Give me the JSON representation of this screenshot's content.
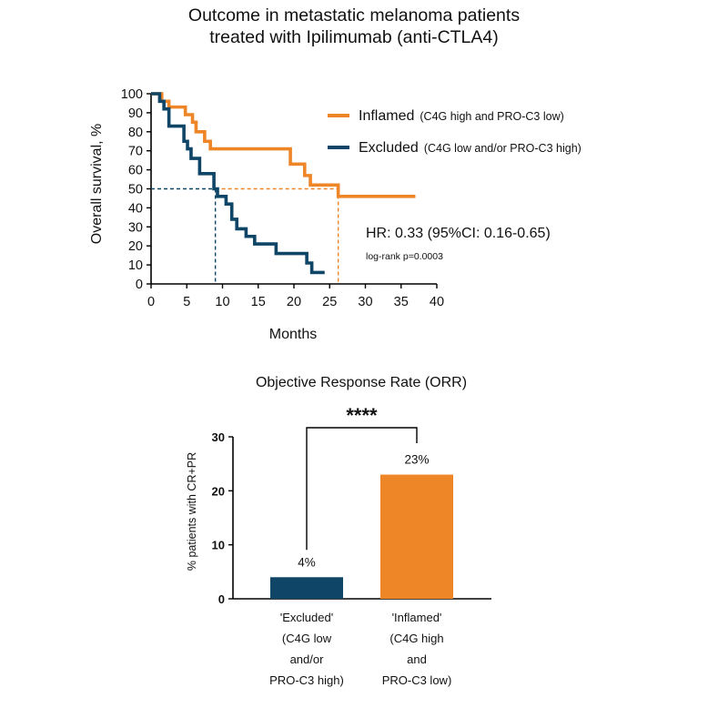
{
  "header": {
    "title_line1": "Outcome in metastatic melanoma patients",
    "title_line2": "treated with Ipilimumab (anti-CTLA4)"
  },
  "colors": {
    "inflamed": "#ee8527",
    "excluded": "#0f4566",
    "axis": "#000000"
  },
  "chart_data": [
    {
      "type": "line",
      "subtype": "kaplan-meier",
      "xlabel": "Months",
      "ylabel": "Overall survival, %",
      "xlim": [
        0,
        40
      ],
      "ylim": [
        0,
        100
      ],
      "xticks": [
        0,
        5,
        10,
        15,
        20,
        25,
        30,
        35,
        40
      ],
      "yticks": [
        0,
        10,
        20,
        30,
        40,
        50,
        60,
        70,
        80,
        90,
        100
      ],
      "legend_position": "top-right",
      "series": [
        {
          "key": "inflamed",
          "name": "Inflamed",
          "name_detail": "(C4G high and PRO-C3 low)",
          "color": "#ee8527",
          "steps": [
            [
              0,
              100
            ],
            [
              1.5,
              96
            ],
            [
              2.5,
              93
            ],
            [
              4.8,
              89
            ],
            [
              5.8,
              85
            ],
            [
              6.3,
              80
            ],
            [
              7.5,
              75
            ],
            [
              8.3,
              71
            ],
            [
              19.5,
              63
            ],
            [
              21.5,
              57
            ],
            [
              22.3,
              52
            ],
            [
              26.2,
              46
            ],
            [
              37,
              46
            ]
          ]
        },
        {
          "key": "excluded",
          "name": "Excluded",
          "name_detail": "(C4G low and/or PRO-C3 high)",
          "color": "#0f4566",
          "steps": [
            [
              0,
              100
            ],
            [
              1.2,
              96
            ],
            [
              1.8,
              92
            ],
            [
              2.5,
              83
            ],
            [
              4.6,
              75
            ],
            [
              5.1,
              71
            ],
            [
              5.6,
              66
            ],
            [
              6.8,
              58
            ],
            [
              8.8,
              50
            ],
            [
              9.3,
              46
            ],
            [
              10.5,
              42
            ],
            [
              11.3,
              34
            ],
            [
              12,
              29
            ],
            [
              13.3,
              25
            ],
            [
              14.5,
              21
            ],
            [
              17.5,
              16
            ],
            [
              21.8,
              11
            ],
            [
              22.5,
              6
            ],
            [
              24.3,
              6
            ]
          ]
        }
      ],
      "median_marks": {
        "y": 50,
        "x_excluded": 9,
        "x_inflamed": 26.2
      },
      "annotations": {
        "hr": "HR: 0.33 (95%CI: 0.16-0.65)",
        "pvalue": "log-rank p=0.0003"
      }
    },
    {
      "type": "bar",
      "title": "Objective Response Rate (ORR)",
      "ylabel": "% patients with CR+PR",
      "ylim": [
        0,
        30
      ],
      "yticks": [
        0,
        10,
        20,
        30
      ],
      "categories": [
        [
          "'Excluded'",
          "(C4G low",
          "and/or",
          "PRO-C3 high)"
        ],
        [
          "'Inflamed'",
          "(C4G high",
          "and",
          "PRO-C3 low)"
        ]
      ],
      "values": [
        4,
        23
      ],
      "value_labels": [
        "4%",
        "23%"
      ],
      "bar_colors": [
        "#0f4566",
        "#ee8527"
      ],
      "significance": "****"
    }
  ]
}
